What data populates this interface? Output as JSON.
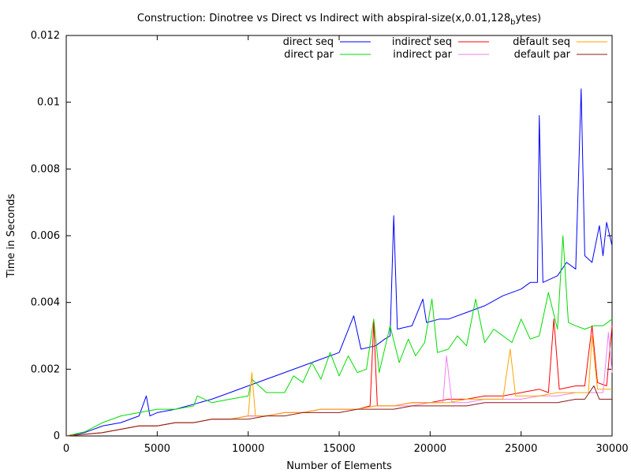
{
  "chart_data": {
    "type": "line",
    "title": "Construction: Dinotree vs Direct vs Indirect with abspiral-size(x,0.01,128",
    "title_sub": "b",
    "title_tail": "ytes)",
    "xlabel": "Number of Elements",
    "ylabel": "Time in Seconds",
    "xlim": [
      0,
      30000
    ],
    "ylim": [
      0,
      0.012
    ],
    "x_ticks": [
      0,
      5000,
      10000,
      15000,
      20000,
      25000,
      30000
    ],
    "x_tick_labels": [
      "0",
      "5000",
      "10000",
      "15000",
      "20000",
      "25000",
      "30000"
    ],
    "y_ticks": [
      0,
      0.002,
      0.004,
      0.006,
      0.008,
      0.01,
      0.012
    ],
    "y_tick_labels": [
      "0",
      "0.002",
      "0.004",
      "0.006",
      "0.008",
      "0.01",
      "0.012"
    ],
    "grid": false,
    "legend_position": "top-right",
    "series": [
      {
        "name": "direct seq",
        "color": "#0000ff",
        "points": [
          [
            0,
            0
          ],
          [
            1000,
            0.0001
          ],
          [
            2000,
            0.0003
          ],
          [
            3000,
            0.0004
          ],
          [
            4000,
            0.0006
          ],
          [
            4400,
            0.0012
          ],
          [
            4600,
            0.0006
          ],
          [
            5000,
            0.0007
          ],
          [
            6000,
            0.0008
          ],
          [
            7000,
            0.00095
          ],
          [
            8000,
            0.0011
          ],
          [
            9000,
            0.0013
          ],
          [
            10000,
            0.0015
          ],
          [
            11000,
            0.0017
          ],
          [
            12000,
            0.0019
          ],
          [
            13000,
            0.0021
          ],
          [
            14000,
            0.0023
          ],
          [
            15000,
            0.0025
          ],
          [
            15800,
            0.0036
          ],
          [
            16200,
            0.0026
          ],
          [
            17000,
            0.0027
          ],
          [
            17500,
            0.0029
          ],
          [
            17800,
            0.003
          ],
          [
            18000,
            0.0066
          ],
          [
            18200,
            0.0032
          ],
          [
            19000,
            0.0033
          ],
          [
            19600,
            0.0041
          ],
          [
            19800,
            0.0034
          ],
          [
            20500,
            0.0035
          ],
          [
            21000,
            0.0035
          ],
          [
            22000,
            0.0037
          ],
          [
            23000,
            0.0039
          ],
          [
            24000,
            0.0042
          ],
          [
            25000,
            0.0044
          ],
          [
            25500,
            0.0046
          ],
          [
            25900,
            0.0046
          ],
          [
            26000,
            0.0096
          ],
          [
            26200,
            0.0046
          ],
          [
            27000,
            0.0048
          ],
          [
            27500,
            0.0052
          ],
          [
            28000,
            0.005
          ],
          [
            28300,
            0.0104
          ],
          [
            28500,
            0.0054
          ],
          [
            28900,
            0.0052
          ],
          [
            29300,
            0.0063
          ],
          [
            29500,
            0.0054
          ],
          [
            29700,
            0.0064
          ],
          [
            30000,
            0.0057
          ]
        ]
      },
      {
        "name": "direct par",
        "color": "#00dd00",
        "points": [
          [
            0,
            0
          ],
          [
            1000,
            0.00012
          ],
          [
            2000,
            0.0004
          ],
          [
            3000,
            0.0006
          ],
          [
            4000,
            0.0007
          ],
          [
            5000,
            0.0008
          ],
          [
            6000,
            0.0008
          ],
          [
            7000,
            0.0009
          ],
          [
            7200,
            0.0012
          ],
          [
            8000,
            0.001
          ],
          [
            9000,
            0.0011
          ],
          [
            10000,
            0.0012
          ],
          [
            10200,
            0.0017
          ],
          [
            11000,
            0.0013
          ],
          [
            12000,
            0.0013
          ],
          [
            12500,
            0.0018
          ],
          [
            13000,
            0.0016
          ],
          [
            13500,
            0.0022
          ],
          [
            14000,
            0.0017
          ],
          [
            14500,
            0.0025
          ],
          [
            15000,
            0.0018
          ],
          [
            15500,
            0.0024
          ],
          [
            16000,
            0.0019
          ],
          [
            16500,
            0.002
          ],
          [
            16900,
            0.0035
          ],
          [
            17200,
            0.0019
          ],
          [
            17800,
            0.0033
          ],
          [
            18300,
            0.0022
          ],
          [
            18800,
            0.0029
          ],
          [
            19200,
            0.0024
          ],
          [
            19700,
            0.0028
          ],
          [
            20100,
            0.0041
          ],
          [
            20400,
            0.0025
          ],
          [
            21000,
            0.0026
          ],
          [
            21500,
            0.003
          ],
          [
            22000,
            0.0027
          ],
          [
            22500,
            0.0041
          ],
          [
            23000,
            0.0028
          ],
          [
            23500,
            0.0032
          ],
          [
            24000,
            0.003
          ],
          [
            24500,
            0.0028
          ],
          [
            25000,
            0.0035
          ],
          [
            25500,
            0.0029
          ],
          [
            26000,
            0.003
          ],
          [
            26500,
            0.0043
          ],
          [
            27000,
            0.0032
          ],
          [
            27300,
            0.006
          ],
          [
            27600,
            0.0034
          ],
          [
            28000,
            0.0033
          ],
          [
            28500,
            0.0032
          ],
          [
            29000,
            0.0033
          ],
          [
            29500,
            0.0033
          ],
          [
            30000,
            0.0035
          ]
        ]
      },
      {
        "name": "indirect seq",
        "color": "#ff0000",
        "points": [
          [
            0,
            0
          ],
          [
            2000,
            0.0001
          ],
          [
            3000,
            0.0002
          ],
          [
            4000,
            0.0003
          ],
          [
            5000,
            0.0003
          ],
          [
            6000,
            0.0004
          ],
          [
            7000,
            0.0004
          ],
          [
            8000,
            0.0005
          ],
          [
            9000,
            0.0005
          ],
          [
            10000,
            0.0006
          ],
          [
            11000,
            0.0006
          ],
          [
            12000,
            0.0007
          ],
          [
            13000,
            0.0007
          ],
          [
            14000,
            0.0008
          ],
          [
            15000,
            0.0008
          ],
          [
            16000,
            0.0008
          ],
          [
            16700,
            0.0009
          ],
          [
            16900,
            0.0034
          ],
          [
            17100,
            0.0009
          ],
          [
            18000,
            0.0009
          ],
          [
            19000,
            0.001
          ],
          [
            20000,
            0.001
          ],
          [
            21000,
            0.0011
          ],
          [
            22000,
            0.0011
          ],
          [
            23000,
            0.0012
          ],
          [
            24000,
            0.0012
          ],
          [
            25000,
            0.0013
          ],
          [
            26000,
            0.0014
          ],
          [
            26500,
            0.0013
          ],
          [
            26800,
            0.0035
          ],
          [
            27100,
            0.0014
          ],
          [
            28000,
            0.0015
          ],
          [
            28500,
            0.0015
          ],
          [
            28900,
            0.0033
          ],
          [
            29200,
            0.0016
          ],
          [
            29700,
            0.0015
          ],
          [
            30000,
            0.0033
          ]
        ]
      },
      {
        "name": "indirect par",
        "color": "#ee82ee",
        "points": [
          [
            0,
            0
          ],
          [
            2000,
            0.0001
          ],
          [
            3000,
            0.0002
          ],
          [
            4000,
            0.0003
          ],
          [
            5000,
            0.0003
          ],
          [
            6000,
            0.0004
          ],
          [
            7000,
            0.0004
          ],
          [
            8000,
            0.0005
          ],
          [
            9000,
            0.0005
          ],
          [
            10000,
            0.0006
          ],
          [
            11000,
            0.0006
          ],
          [
            12000,
            0.0007
          ],
          [
            13000,
            0.0007
          ],
          [
            14000,
            0.0008
          ],
          [
            15000,
            0.0008
          ],
          [
            16000,
            0.0008
          ],
          [
            17000,
            0.0009
          ],
          [
            18000,
            0.0009
          ],
          [
            19000,
            0.0009
          ],
          [
            20000,
            0.001
          ],
          [
            20700,
            0.001
          ],
          [
            20900,
            0.0024
          ],
          [
            21200,
            0.001
          ],
          [
            22000,
            0.001
          ],
          [
            23000,
            0.0011
          ],
          [
            24000,
            0.0011
          ],
          [
            25000,
            0.0011
          ],
          [
            26000,
            0.0012
          ],
          [
            27000,
            0.0012
          ],
          [
            28000,
            0.0013
          ],
          [
            29000,
            0.0013
          ],
          [
            29500,
            0.0013
          ],
          [
            29800,
            0.0031
          ],
          [
            30000,
            0.0019
          ]
        ]
      },
      {
        "name": "default seq",
        "color": "#ffa500",
        "points": [
          [
            0,
            0
          ],
          [
            2000,
            0.0001
          ],
          [
            3000,
            0.0002
          ],
          [
            4000,
            0.0003
          ],
          [
            5000,
            0.0003
          ],
          [
            6000,
            0.0004
          ],
          [
            7000,
            0.0004
          ],
          [
            8000,
            0.0005
          ],
          [
            9000,
            0.0005
          ],
          [
            10000,
            0.0006
          ],
          [
            10200,
            0.0019
          ],
          [
            10400,
            0.0006
          ],
          [
            11000,
            0.0006
          ],
          [
            12000,
            0.0007
          ],
          [
            13000,
            0.0007
          ],
          [
            14000,
            0.0008
          ],
          [
            15000,
            0.0008
          ],
          [
            16000,
            0.0008
          ],
          [
            17000,
            0.0009
          ],
          [
            18000,
            0.0009
          ],
          [
            19000,
            0.001
          ],
          [
            20000,
            0.001
          ],
          [
            21000,
            0.001
          ],
          [
            22000,
            0.0011
          ],
          [
            23000,
            0.0011
          ],
          [
            24000,
            0.0011
          ],
          [
            24400,
            0.0026
          ],
          [
            24700,
            0.0012
          ],
          [
            25000,
            0.0012
          ],
          [
            26000,
            0.0012
          ],
          [
            27000,
            0.0013
          ],
          [
            28000,
            0.0013
          ],
          [
            28700,
            0.0013
          ],
          [
            28900,
            0.003
          ],
          [
            29200,
            0.0014
          ],
          [
            30000,
            0.0014
          ]
        ]
      },
      {
        "name": "default par",
        "color": "#8b1a1a",
        "points": [
          [
            0,
            0
          ],
          [
            2000,
            0.0001
          ],
          [
            3000,
            0.0002
          ],
          [
            4000,
            0.0003
          ],
          [
            5000,
            0.0003
          ],
          [
            6000,
            0.0004
          ],
          [
            7000,
            0.0004
          ],
          [
            8000,
            0.0005
          ],
          [
            9000,
            0.0005
          ],
          [
            10000,
            0.0005
          ],
          [
            11000,
            0.0006
          ],
          [
            12000,
            0.0006
          ],
          [
            13000,
            0.0007
          ],
          [
            14000,
            0.0007
          ],
          [
            15000,
            0.0007
          ],
          [
            16000,
            0.0008
          ],
          [
            17000,
            0.0008
          ],
          [
            18000,
            0.0008
          ],
          [
            19000,
            0.0009
          ],
          [
            20000,
            0.0009
          ],
          [
            21000,
            0.0009
          ],
          [
            22000,
            0.0009
          ],
          [
            23000,
            0.001
          ],
          [
            24000,
            0.001
          ],
          [
            25000,
            0.001
          ],
          [
            26000,
            0.001
          ],
          [
            27000,
            0.001
          ],
          [
            28000,
            0.0011
          ],
          [
            28500,
            0.0011
          ],
          [
            29000,
            0.0015
          ],
          [
            29300,
            0.0011
          ],
          [
            30000,
            0.0011
          ]
        ]
      }
    ]
  }
}
